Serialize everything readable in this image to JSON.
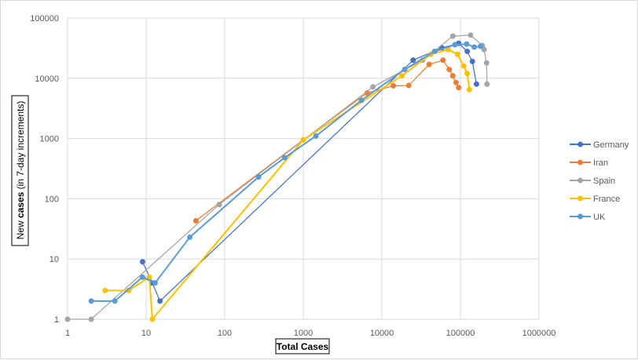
{
  "chart_data": {
    "type": "line",
    "xscale": "log",
    "yscale": "log",
    "xlim": [
      1,
      1000000
    ],
    "ylim": [
      1,
      100000
    ],
    "xlabel": "Total Cases",
    "ylabel": "New cases (in 7-day increments)",
    "ylabel_parts": {
      "pre": "New ",
      "bold": "cases",
      "post": " (in 7-day increments)"
    },
    "grid": true,
    "legend_position": "right",
    "x_ticks": [
      "1",
      "10",
      "100",
      "1000",
      "10000",
      "100000",
      "1000000"
    ],
    "y_ticks": [
      "1",
      "10",
      "100",
      "1000",
      "10000",
      "100000"
    ],
    "series": [
      {
        "name": "Germany",
        "color": "#4472C4",
        "x": [
          9,
          12,
          15,
          25000,
          58000,
          95000,
          122000,
          142000,
          160000
        ],
        "y": [
          9,
          4,
          2,
          20000,
          32000,
          38000,
          28000,
          19000,
          8000
        ]
      },
      {
        "name": "Iran",
        "color": "#ED7D31",
        "x": [
          43,
          1000,
          6500,
          14000,
          22000,
          40000,
          60000,
          72000,
          80000,
          88000,
          95000
        ],
        "y": [
          43,
          950,
          5700,
          7500,
          7600,
          17000,
          20000,
          14000,
          11000,
          8500,
          7000
        ]
      },
      {
        "name": "Spain",
        "color": "#A5A5A5",
        "x": [
          1,
          2,
          85,
          7700,
          33000,
          80000,
          135000,
          190000,
          200000,
          215000,
          218000
        ],
        "y": [
          1,
          1,
          80,
          7200,
          20000,
          50000,
          52000,
          35000,
          30000,
          18000,
          8000
        ]
      },
      {
        "name": "France",
        "color": "#FFC000",
        "x": [
          3,
          6,
          11,
          12,
          1000,
          18000,
          42000,
          70000,
          92000,
          110000,
          122000,
          130000
        ],
        "y": [
          3,
          3,
          5,
          1,
          950,
          11000,
          25000,
          30000,
          25000,
          16000,
          12000,
          6500
        ]
      },
      {
        "name": "UK",
        "color": "#5B9BD5",
        "x": [
          2,
          4,
          9,
          13,
          36,
          270,
          580,
          1450,
          5500,
          19500,
          47000,
          85000,
          120000,
          150000,
          180000
        ],
        "y": [
          2,
          2,
          5,
          4,
          23,
          230,
          480,
          1100,
          4300,
          14000,
          28000,
          36000,
          37000,
          33000,
          34000
        ]
      }
    ]
  }
}
